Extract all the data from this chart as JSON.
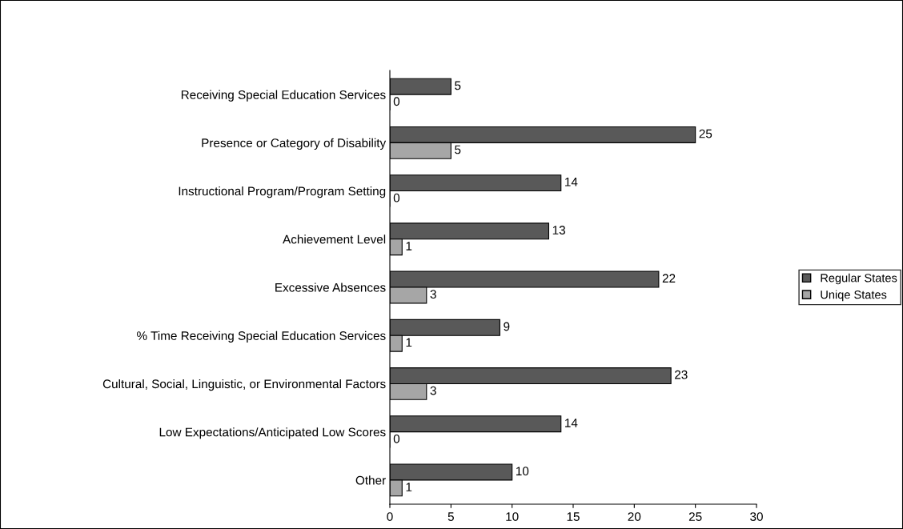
{
  "chart_data": {
    "type": "bar",
    "orientation": "horizontal",
    "categories": [
      "Receiving Special Education Services",
      "Presence or Category of Disability",
      "Instructional Program/Program Setting",
      "Achievement Level",
      "Excessive Absences",
      "% Time Receiving Special Education Services",
      "Cultural, Social, Linguistic, or Environmental Factors",
      "Low Expectations/Anticipated Low Scores",
      "Other"
    ],
    "series": [
      {
        "name": "Regular States",
        "color": "#595959",
        "values": [
          5,
          25,
          14,
          13,
          22,
          9,
          23,
          14,
          10
        ]
      },
      {
        "name": "Uniqe States",
        "color": "#a6a6a6",
        "values": [
          0,
          5,
          0,
          1,
          3,
          1,
          3,
          0,
          1
        ]
      }
    ],
    "xlim": [
      0,
      30
    ],
    "xticks": [
      0,
      5,
      10,
      15,
      20,
      25,
      30
    ],
    "data_labels": true,
    "grid": false,
    "legend": "right"
  }
}
